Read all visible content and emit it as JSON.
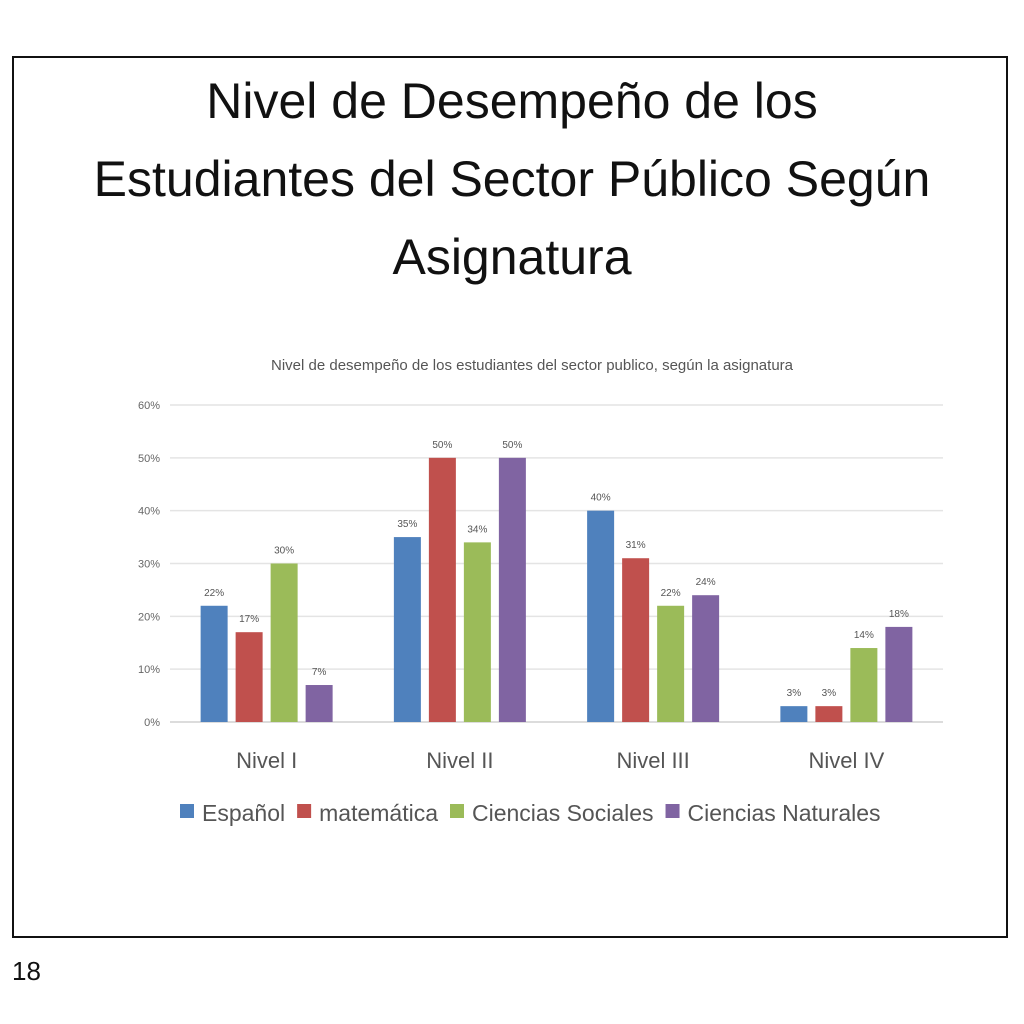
{
  "slide": {
    "title_lines": [
      "Nivel de Desempeño de los",
      "Estudiantes del Sector Público Según",
      "Asignatura"
    ],
    "page_number": "18"
  },
  "chart_data": {
    "type": "bar",
    "title": "Nivel de desempeño de los estudiantes del sector publico, según la asignatura",
    "categories": [
      "Nivel I",
      "Nivel II",
      "Nivel III",
      "Nivel IV"
    ],
    "series": [
      {
        "name": "Español",
        "color": "#4f81bd",
        "values": [
          22,
          35,
          40,
          3
        ]
      },
      {
        "name": "matemática",
        "color": "#c0504d",
        "values": [
          17,
          50,
          31,
          3
        ]
      },
      {
        "name": "Ciencias Sociales",
        "color": "#9bbb59",
        "values": [
          30,
          34,
          22,
          14
        ]
      },
      {
        "name": "Ciencias Naturales",
        "color": "#8064a2",
        "values": [
          7,
          50,
          24,
          18
        ]
      }
    ],
    "value_suffix": "%",
    "ylim": [
      0,
      60
    ],
    "yticks": [
      "0%",
      "10%",
      "20%",
      "30%",
      "40%",
      "50%",
      "60%"
    ],
    "grid": true,
    "legend": "bottom",
    "xlabel": "",
    "ylabel": ""
  }
}
